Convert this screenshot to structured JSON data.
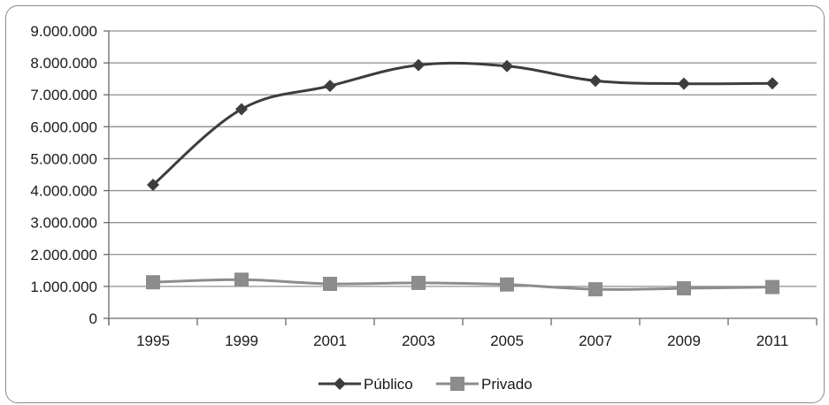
{
  "chart_data": {
    "type": "line",
    "categories": [
      "1995",
      "1999",
      "2001",
      "2003",
      "2005",
      "2007",
      "2009",
      "2011"
    ],
    "y_ticks": [
      "0",
      "1.000.000",
      "2.000.000",
      "3.000.000",
      "4.000.000",
      "5.000.000",
      "6.000.000",
      "7.000.000",
      "8.000.000",
      "9.000.000"
    ],
    "ylim": [
      0,
      9000000
    ],
    "grid": true,
    "legend_position": "bottom",
    "series": [
      {
        "name": "Público",
        "color": "#3d3d3d",
        "marker": "diamond",
        "values": [
          4180000,
          6550000,
          7280000,
          7930000,
          7900000,
          7440000,
          7350000,
          7360000
        ]
      },
      {
        "name": "Privado",
        "color": "#8c8c8c",
        "marker": "square",
        "values": [
          1130000,
          1210000,
          1080000,
          1110000,
          1060000,
          910000,
          940000,
          980000
        ]
      }
    ]
  }
}
